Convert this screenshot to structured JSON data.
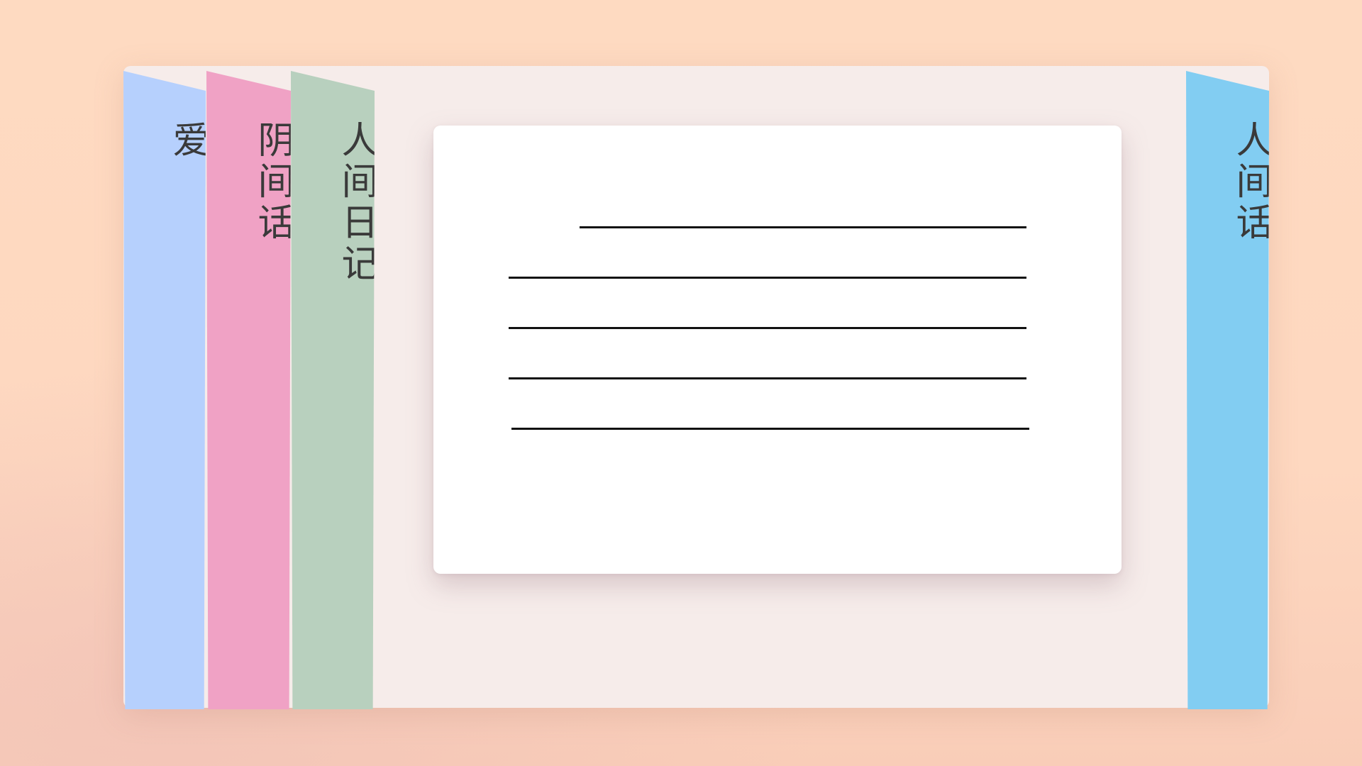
{
  "tabs": [
    {
      "label": "爱",
      "color": "#b6d0fd"
    },
    {
      "label": "阴间话",
      "color": "#f0a2c5"
    },
    {
      "label": "人间日记",
      "color": "#b8d0be"
    },
    {
      "label": "人间话",
      "color": "#82cdf2"
    }
  ],
  "card": {
    "line_count": 5
  },
  "colors": {
    "background": "#fed8c0",
    "board": "#f6ecea",
    "card": "#ffffff",
    "text": "#3a3a3a",
    "lines": "#111111"
  }
}
